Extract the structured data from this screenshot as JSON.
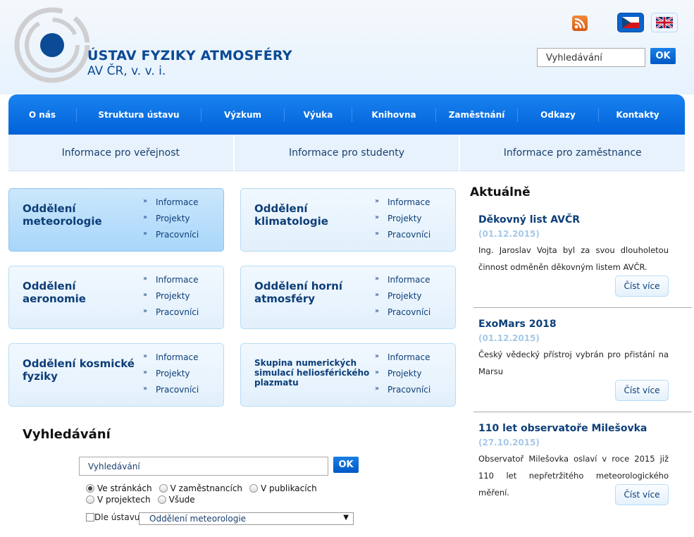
{
  "header": {
    "logo_line1": "ÚSTAV FYZIKY ATMOSFÉRY",
    "logo_line2": "AV ČR, v. v. i.",
    "search_placeholder": "Vyhledávání",
    "ok": "OK"
  },
  "nav": [
    "O nás",
    "Struktura ústavu",
    "Výzkum",
    "Výuka",
    "Knihovna",
    "Zaměstnání",
    "Odkazy",
    "Kontakty"
  ],
  "subnav": [
    "Informace pro veřejnost",
    "Informace pro studenty",
    "Informace pro zaměstnance"
  ],
  "dept_links": [
    "Informace",
    "Projekty",
    "Pracovníci"
  ],
  "departments": [
    {
      "title": "Oddělení meteorologie"
    },
    {
      "title": "Oddělení klimatologie"
    },
    {
      "title": "Oddělení aeronomie"
    },
    {
      "title": "Oddělení horní atmosféry"
    },
    {
      "title": "Oddělení kosmické fyziky"
    },
    {
      "title": "Skupina numerických simulací heliosférického plazmatu"
    }
  ],
  "search": {
    "heading": "Vyhledávání",
    "placeholder": "Vyhledávání",
    "ok": "OK",
    "options": [
      "Ve stránkách",
      "V zaměstnancích",
      "V publikacích",
      "V projektech",
      "Všude"
    ],
    "selected": "Ve stránkách",
    "by_institute_label": "Dle ústavu",
    "institute_selected": "Oddělení meteorologie"
  },
  "news": {
    "heading": "Aktuálně",
    "more": "Číst více",
    "items": [
      {
        "title": "Děkovný list AVČR",
        "date": "(01.12.2015)",
        "text": "Ing. Jaroslav Vojta byl za svou dlouholetou činnost odměněn děkovným listem AVČR."
      },
      {
        "title": "ExoMars 2018",
        "date": "(01.12.2015)",
        "text": "Český vědecký přístroj vybrán pro přistání na Marsu"
      },
      {
        "title": "110 let observatoře Milešovka",
        "date": "(27.10.2015)",
        "text": "Observatoř Milešovka oslaví v roce 2015 již 110 let nepřetržitého meteorologického měření."
      }
    ]
  }
}
